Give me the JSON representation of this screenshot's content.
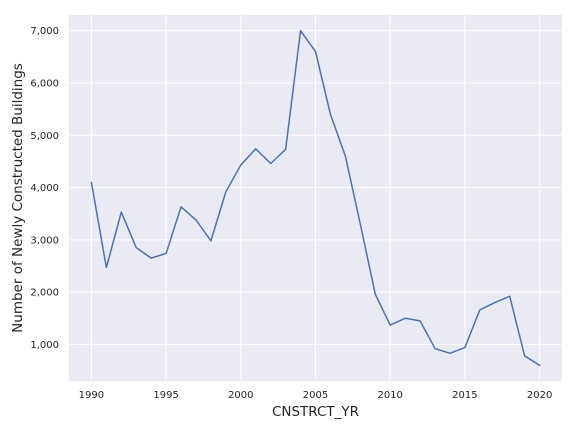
{
  "chart_data": {
    "type": "line",
    "title": "",
    "xlabel": "CNSTRCT_YR",
    "ylabel": "Number of Newly Constructed Buildings",
    "xlim": [
      1988.5,
      2021.5
    ],
    "ylim": [
      300,
      7300
    ],
    "grid": true,
    "x_ticks": [
      1990,
      1995,
      2000,
      2005,
      2010,
      2015,
      2020
    ],
    "x_tick_labels": [
      "1990",
      "1995",
      "2000",
      "2005",
      "2010",
      "2015",
      "2020"
    ],
    "y_ticks": [
      1000,
      2000,
      3000,
      4000,
      5000,
      6000,
      7000
    ],
    "y_tick_labels": [
      "1,000",
      "2,000",
      "3,000",
      "4,000",
      "5,000",
      "6,000",
      "7,000"
    ],
    "series": [
      {
        "color": "#4c72b0",
        "x": [
          1990,
          1991,
          1992,
          1993,
          1994,
          1995,
          1996,
          1997,
          1998,
          1999,
          2000,
          2001,
          2002,
          2003,
          2004,
          2005,
          2006,
          2007,
          2008,
          2009,
          2010,
          2011,
          2012,
          2013,
          2014,
          2015,
          2016,
          2017,
          2018,
          2019,
          2020
        ],
        "y": [
          4100,
          2470,
          3530,
          2850,
          2650,
          2740,
          3630,
          3380,
          2980,
          3920,
          4430,
          4740,
          4460,
          4730,
          7000,
          6600,
          5400,
          4600,
          3300,
          1960,
          1370,
          1500,
          1450,
          920,
          830,
          940,
          1660,
          1800,
          1920,
          780,
          600
        ]
      }
    ]
  },
  "colors": {
    "plot_background": "#eaeaf2",
    "grid": "#ffffff",
    "line": "#4c72b0",
    "text": "#262626"
  }
}
